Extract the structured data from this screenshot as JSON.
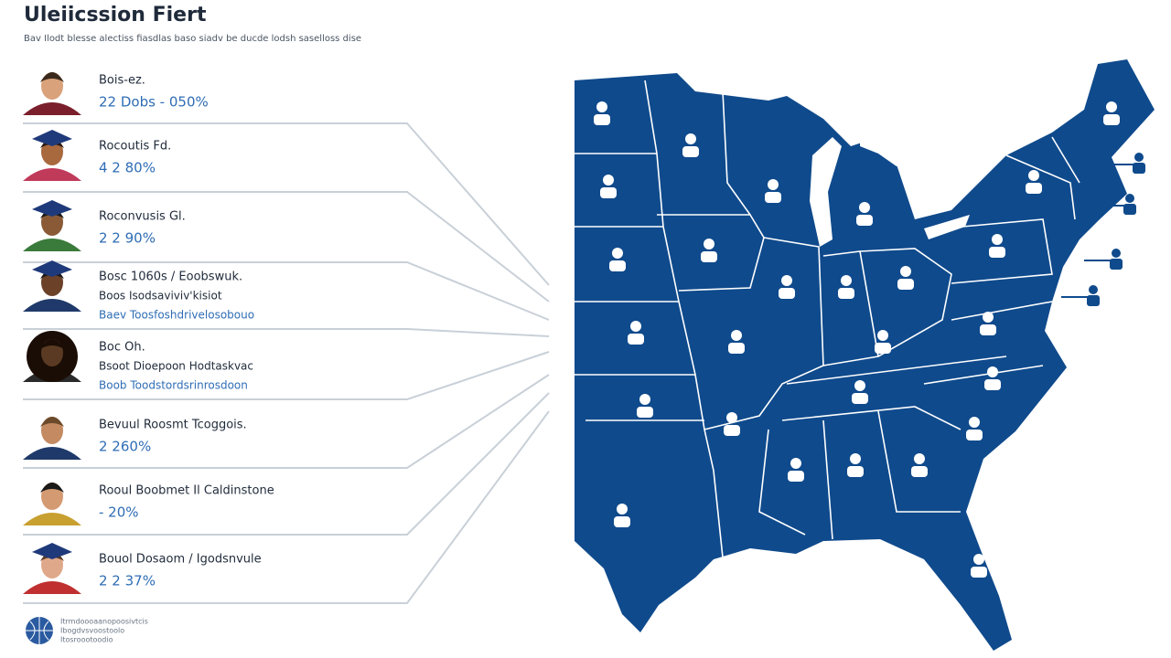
{
  "header": {
    "title": "Uleiicssion Fiert",
    "subtitle": "Bav Ilodt blesse alectiss fiasdlas baso siadv be ducde lodsh saselloss dise"
  },
  "rows": [
    {
      "lines": [
        "Bois-ez.",
        "22 Dobs - 050%"
      ]
    },
    {
      "lines": [
        "Rocoutis Fd.",
        "4 2 80%"
      ]
    },
    {
      "lines": [
        "Roconvusis Gl.",
        "2 2 90%"
      ]
    },
    {
      "lines": [
        "Bosc 1060s / Eoobswuk.",
        "Boos Isodsaviviv'kisiot",
        "Baev Toosfoshdrivelosobouo"
      ]
    },
    {
      "lines": [
        "Boc Oh.",
        "Bsoot Dioepoon Hodtaskvac",
        "Boob Toodstordsrinrosdoon"
      ]
    },
    {
      "lines": [
        "Bevuul Roosmt Tcoggois.",
        "2 260%"
      ]
    },
    {
      "lines": [
        "Rooul Boobmet Il Caldinstone",
        "- 20%"
      ]
    },
    {
      "lines": [
        "Bouol Dosaom / Igodsnvule",
        "2 2 37%"
      ]
    }
  ],
  "footer": {
    "lines": [
      "Itrmdoooaanopoosivtcis",
      "Ibogdvsvoostoolo",
      "Itosroootoodio"
    ]
  }
}
